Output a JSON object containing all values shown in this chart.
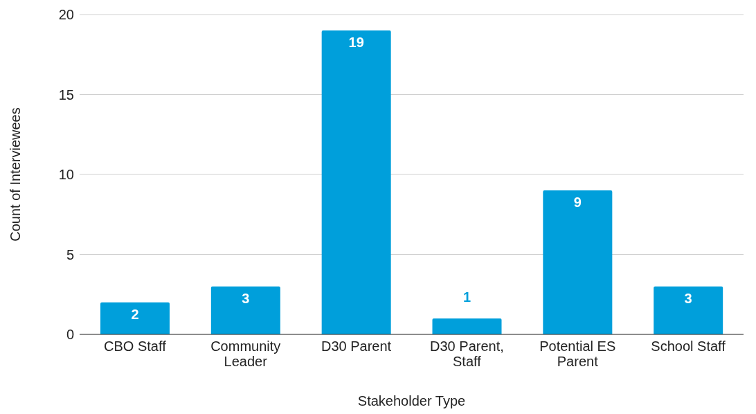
{
  "chart_data": {
    "type": "bar",
    "xlabel": "Stakeholder Type",
    "ylabel": "Count of Interviewees",
    "categories": [
      "CBO Staff",
      "Community Leader",
      "D30 Parent",
      "D30 Parent, Staff",
      "Potential ES Parent",
      "School Staff"
    ],
    "values": [
      2,
      3,
      19,
      1,
      9,
      3
    ],
    "color": "#009fdb",
    "ylim": [
      0,
      20
    ],
    "yticks": [
      0,
      5,
      10,
      15,
      20
    ],
    "grid": "y",
    "data_labels": true
  }
}
